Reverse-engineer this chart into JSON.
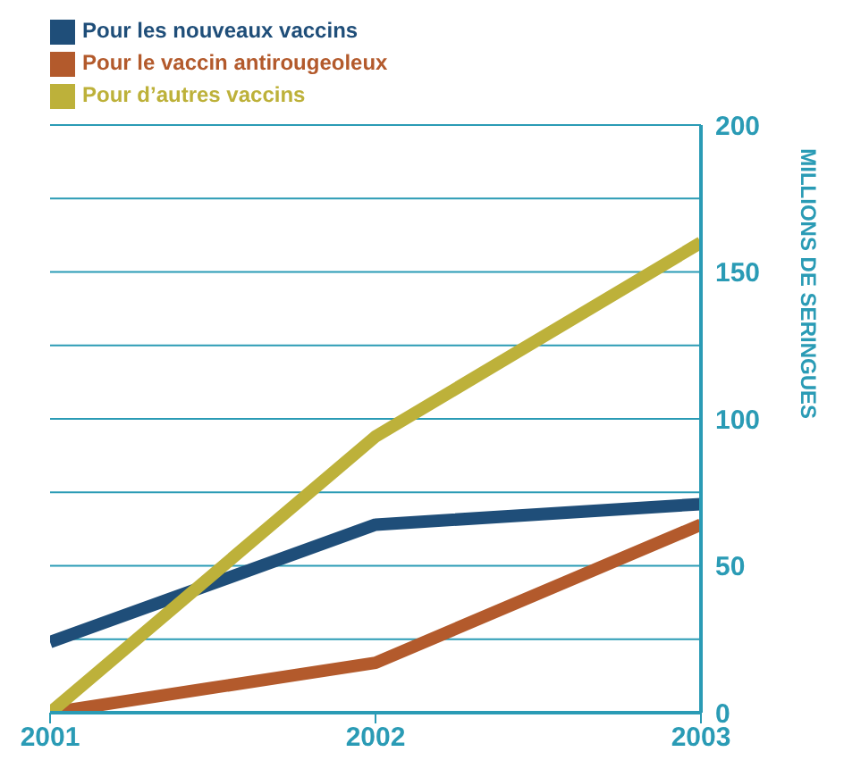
{
  "chart_data": {
    "type": "line",
    "ylabel": "MILLIONS DE SERINGUES",
    "x": [
      2001,
      2002,
      2003
    ],
    "xlim": [
      2001,
      2003
    ],
    "xticks": [
      2001,
      2002,
      2003
    ],
    "ylim": [
      0,
      200
    ],
    "yticks": [
      0,
      {
        "value": 25,
        "label": null
      },
      50,
      {
        "value": 75,
        "label": null
      },
      100,
      {
        "value": 125,
        "label": null
      },
      150,
      {
        "value": 175,
        "label": null
      },
      200
    ],
    "grid": "y",
    "legend": "top left",
    "marker": "none",
    "line_style": "solid",
    "series": [
      {
        "name": "Pour les nouveaux vaccins",
        "color": "#1f4e79",
        "values": [
          24,
          64,
          71
        ]
      },
      {
        "name": "Pour le vaccin antirougeoleux",
        "color": "#b35a2c",
        "values": [
          0,
          17,
          64
        ]
      },
      {
        "name": "Pour d’autres vaccins",
        "color": "#bdb13a",
        "values": [
          0,
          94,
          160
        ]
      }
    ]
  }
}
